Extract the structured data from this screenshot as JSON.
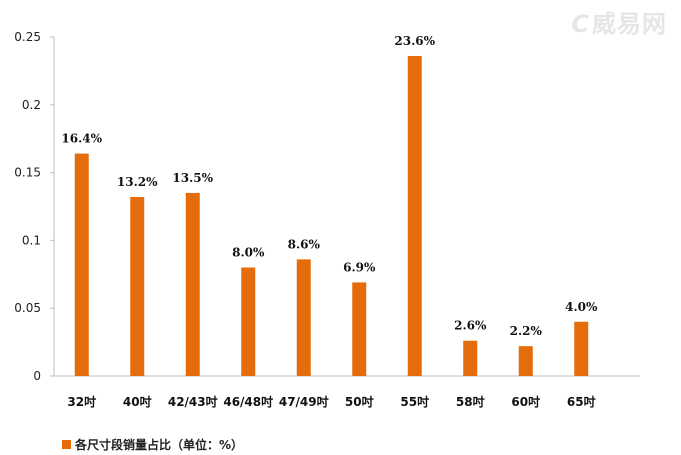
{
  "chart_data": {
    "type": "bar",
    "categories": [
      "32吋",
      "40吋",
      "42/43吋",
      "46/48吋",
      "47/49吋",
      "50吋",
      "55吋",
      "58吋",
      "60吋",
      "65吋"
    ],
    "values": [
      0.164,
      0.132,
      0.135,
      0.08,
      0.086,
      0.069,
      0.236,
      0.026,
      0.022,
      0.04
    ],
    "data_labels": [
      "16.4%",
      "13.2%",
      "13.5%",
      "8.0%",
      "8.6%",
      "6.9%",
      "23.6%",
      "2.6%",
      "2.2%",
      "4.0%"
    ],
    "yticks": [
      "0",
      "0.05",
      "0.1",
      "0.15",
      "0.2",
      "0.25"
    ],
    "ylim": [
      0,
      0.25
    ],
    "legend": "各尺寸段销量占比（单位：%）",
    "title": "",
    "xlabel": "",
    "ylabel": "",
    "grid": false,
    "bar_color": "#e46c0a"
  },
  "watermark": {
    "mark": "C",
    "text": "威易网"
  }
}
